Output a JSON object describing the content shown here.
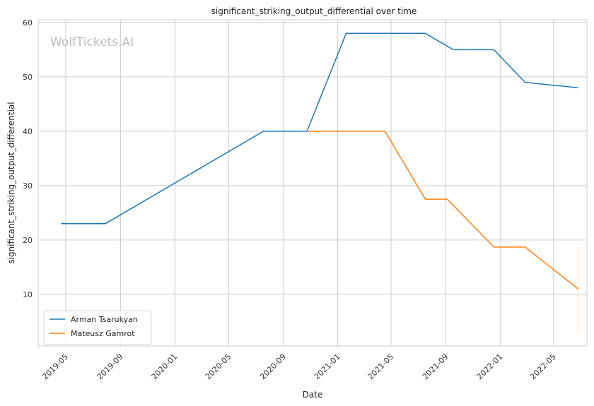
{
  "chart_data": {
    "type": "line",
    "title": "significant_striking_output_differential over time",
    "xlabel": "Date",
    "ylabel": "significant_striking_output_differential",
    "watermark": "WolfTickets.AI",
    "x_ticks": [
      "2019-05",
      "2019-09",
      "2020-01",
      "2020-05",
      "2020-09",
      "2021-01",
      "2021-05",
      "2021-09",
      "2022-01",
      "2022-05"
    ],
    "y_ticks": [
      10,
      20,
      30,
      40,
      50,
      60
    ],
    "ylim": [
      0.5,
      60.5
    ],
    "xlim": [
      "2019-02-28",
      "2022-07-15"
    ],
    "grid": true,
    "legend_position": "lower-left",
    "series": [
      {
        "name": "Arman Tsarukyan",
        "color": "#1f77b4",
        "points": [
          {
            "x": "2019-04-20",
            "y": 23
          },
          {
            "x": "2019-07-29",
            "y": 23
          },
          {
            "x": "2020-07-18",
            "y": 40
          },
          {
            "x": "2020-10-24",
            "y": 40
          },
          {
            "x": "2021-01-20",
            "y": 58
          },
          {
            "x": "2021-07-17",
            "y": 58
          },
          {
            "x": "2021-09-18",
            "y": 55
          },
          {
            "x": "2021-12-18",
            "y": 55
          },
          {
            "x": "2022-02-26",
            "y": 49
          },
          {
            "x": "2022-06-25",
            "y": 48
          }
        ]
      },
      {
        "name": "Mateusz Gamrot",
        "color": "#ff7f0e",
        "points": [
          {
            "x": "2020-10-24",
            "y": 40
          },
          {
            "x": "2021-04-17",
            "y": 40
          },
          {
            "x": "2021-07-17",
            "y": 27.5
          },
          {
            "x": "2021-09-04",
            "y": 27.5
          },
          {
            "x": "2021-12-18",
            "y": 18.7
          },
          {
            "x": "2022-02-26",
            "y": 18.7
          },
          {
            "x": "2022-06-25",
            "y": 11
          }
        ],
        "error_band": {
          "x": "2022-06-25",
          "low": 3,
          "high": 19
        }
      }
    ]
  }
}
